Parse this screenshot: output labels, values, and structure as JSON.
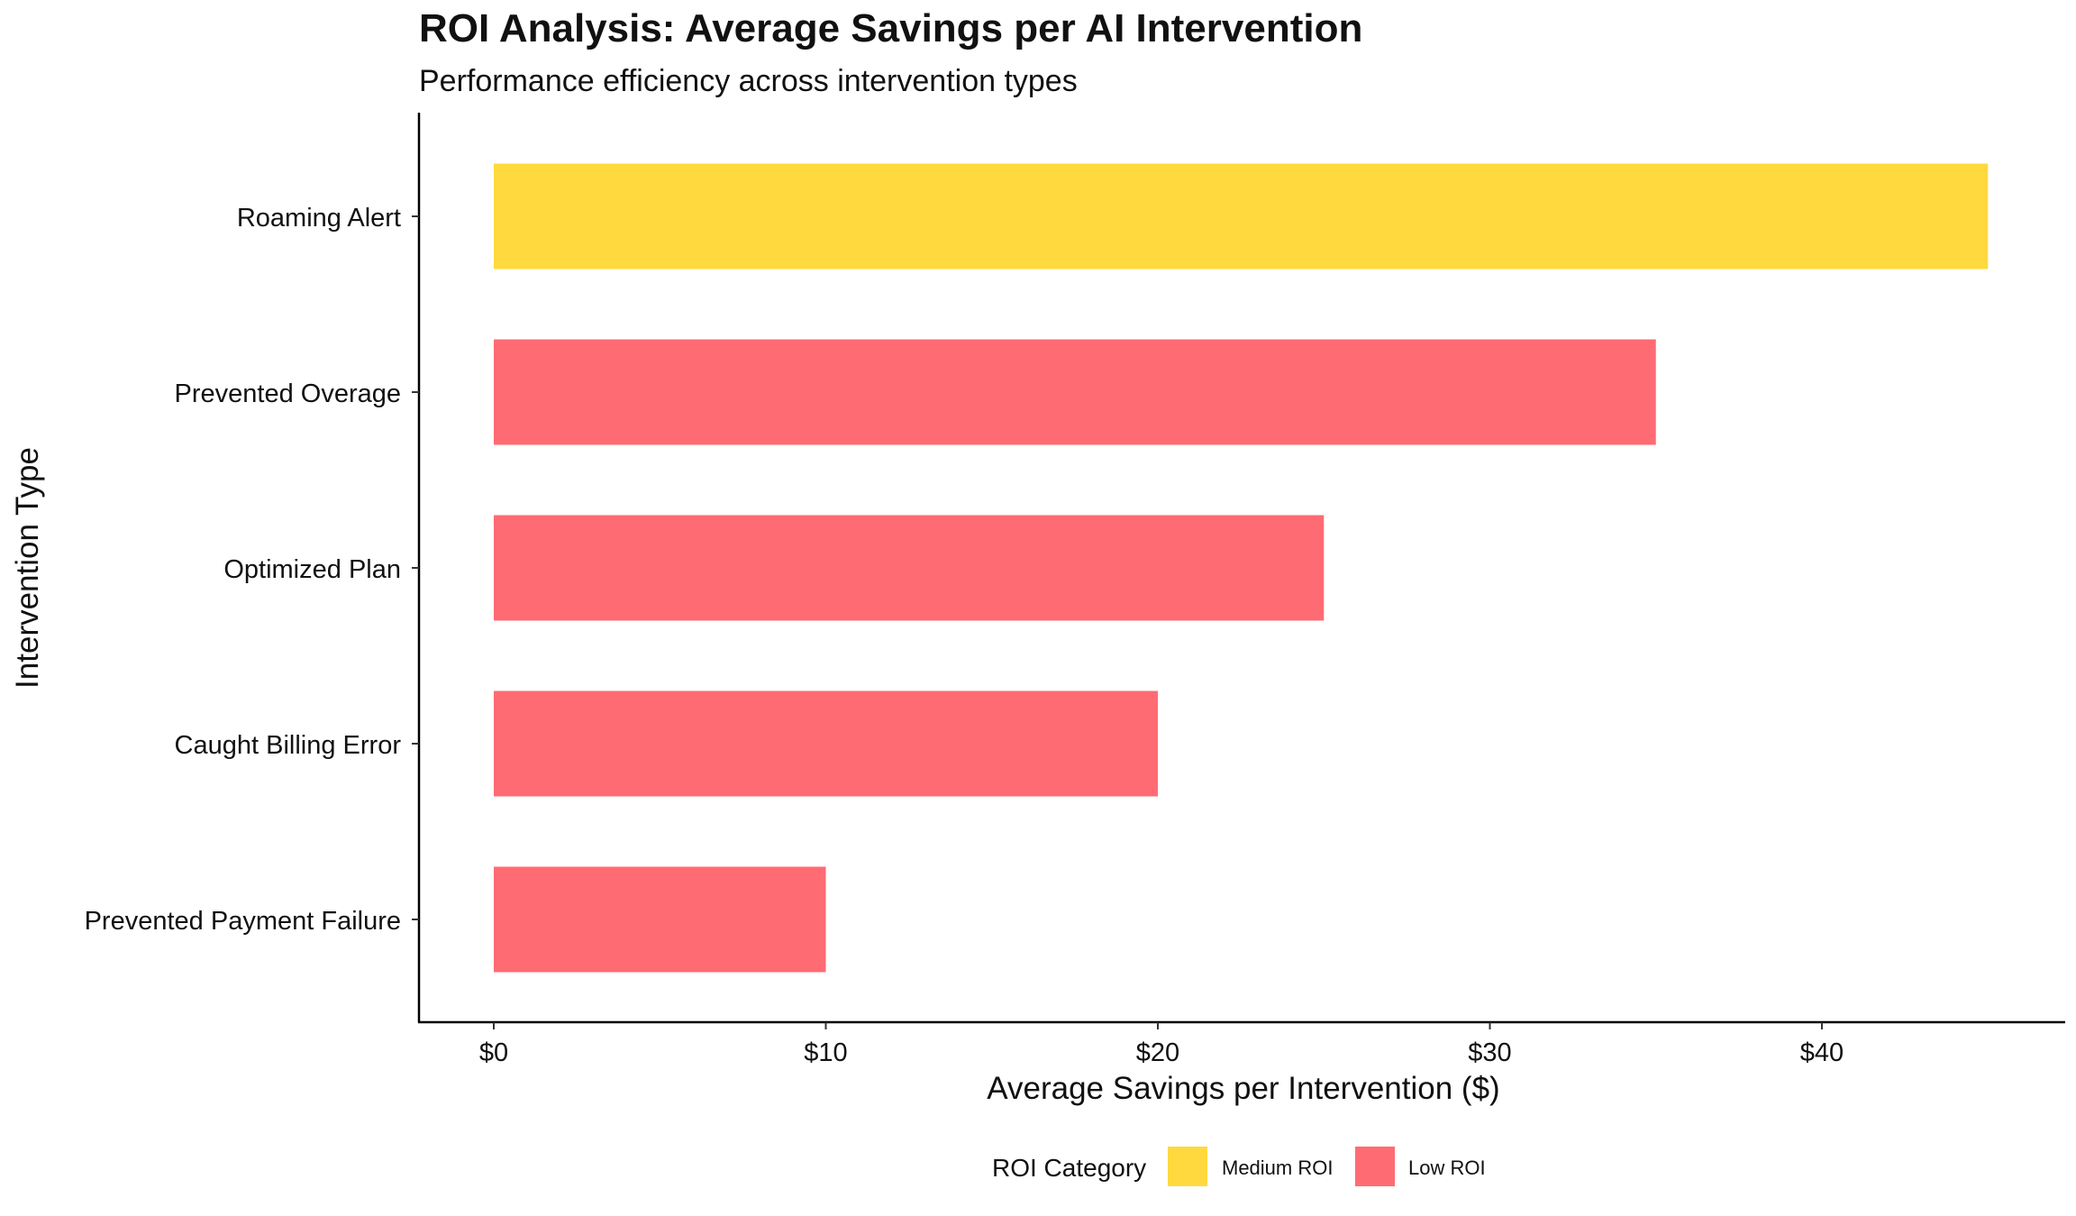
{
  "chart_data": {
    "type": "bar",
    "orientation": "horizontal",
    "title": "ROI Analysis: Average Savings per AI Intervention",
    "subtitle": "Performance efficiency across intervention types",
    "xlabel": "Average Savings per Intervention ($)",
    "ylabel": "Intervention Type",
    "xlim": [
      0,
      47
    ],
    "xticks": [
      0,
      10,
      20,
      30,
      40
    ],
    "tick_labels": [
      "$0",
      "$10",
      "$20",
      "$30",
      "$40"
    ],
    "grid": false,
    "categories": [
      "Roaming Alert",
      "Prevented Overage",
      "Optimized Plan",
      "Caught Billing Error",
      "Prevented Payment Failure"
    ],
    "values": [
      45,
      35,
      25,
      20,
      10
    ],
    "roi_category": [
      "Medium ROI",
      "Low ROI",
      "Low ROI",
      "Low ROI",
      "Low ROI"
    ],
    "legend": {
      "title": "ROI Category",
      "position": "bottom",
      "entries": [
        {
          "label": "Medium ROI",
          "color": "#FFD93D"
        },
        {
          "label": "Low ROI",
          "color": "#FF6B72"
        }
      ]
    }
  }
}
